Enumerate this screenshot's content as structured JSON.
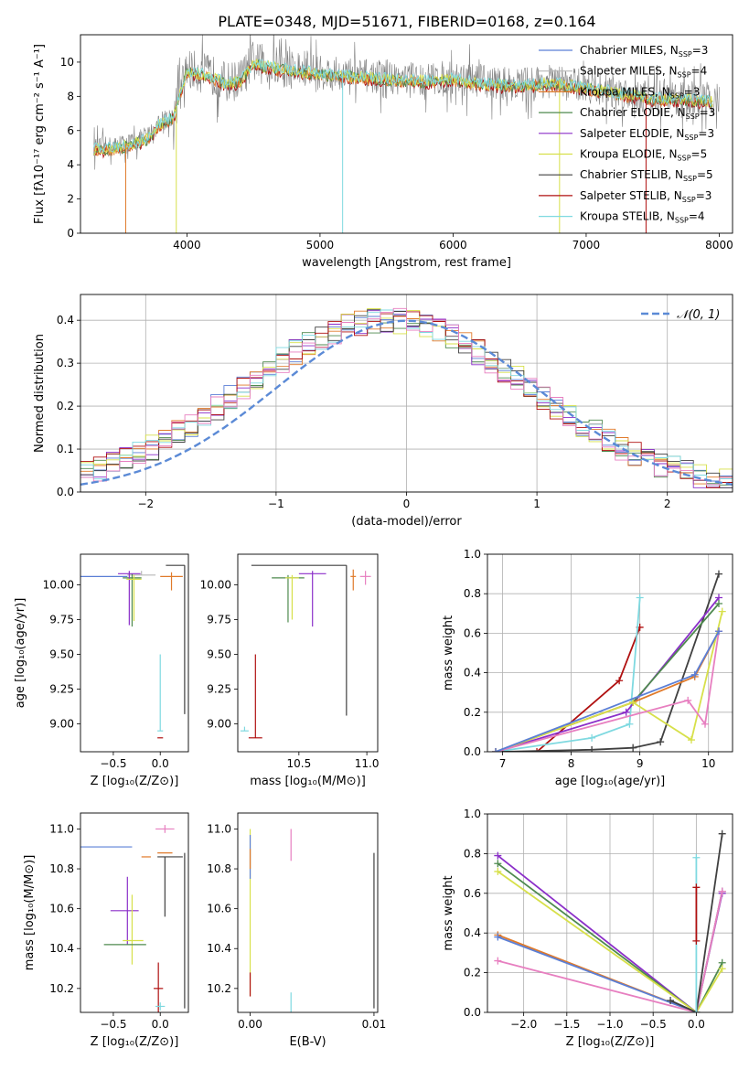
{
  "figure": {
    "title": "PLATE=0348, MJD=51671, FIBERID=0168, z=0.164"
  },
  "colors": {
    "Chabrier MILES": "#5b7fd6",
    "Salpeter MILES": "#b7b7b7",
    "Kroupa MILES": "#e07a2a",
    "Chabrier ELODIE": "#4f8a4f",
    "Salpeter ELODIE": "#8b2fc9",
    "Kroupa ELODIE": "#d7e04a",
    "Chabrier STELIB": "#404040",
    "Salpeter STELIB": "#b01010",
    "Kroupa STELIB": "#7fd9e0",
    "Pink": "#e77fc0",
    "Data": "#808080",
    "Normal": "#5b8ad6"
  },
  "chart_data": [
    {
      "id": "spectrum",
      "type": "line",
      "xlabel": "wavelength [Angstrom, rest frame]",
      "ylabel": "Flux [fλ10⁻¹⁷ erg cm⁻² s⁻¹ A⁻¹]",
      "xlim": [
        3200,
        8100
      ],
      "ylim": [
        0,
        11.6
      ],
      "xticks": [
        4000,
        5000,
        6000,
        7000,
        8000
      ],
      "yticks": [
        0,
        2,
        4,
        6,
        8,
        10
      ],
      "grid": false,
      "legend_position": "right",
      "legend": [
        {
          "label": "Chabrier MILES, N",
          "sub": "SSP",
          "tail": "=3",
          "color": "#5b7fd6"
        },
        {
          "label": "Salpeter MILES, N",
          "sub": "SSP",
          "tail": "=4",
          "color": "#b7b7b7"
        },
        {
          "label": "Kroupa MILES, N",
          "sub": "SSP",
          "tail": "=3",
          "color": "#e07a2a"
        },
        {
          "label": "Chabrier ELODIE, N",
          "sub": "SSP",
          "tail": "=3",
          "color": "#4f8a4f"
        },
        {
          "label": "Salpeter ELODIE, N",
          "sub": "SSP",
          "tail": "=3",
          "color": "#8b2fc9"
        },
        {
          "label": "Kroupa ELODIE, N",
          "sub": "SSP",
          "tail": "=5",
          "color": "#d7e04a"
        },
        {
          "label": "Chabrier STELIB, N",
          "sub": "SSP",
          "tail": "=5",
          "color": "#404040"
        },
        {
          "label": "Salpeter STELIB, N",
          "sub": "SSP",
          "tail": "=3",
          "color": "#b01010"
        },
        {
          "label": "Kroupa STELIB, N",
          "sub": "SSP",
          "tail": "=4",
          "color": "#7fd9e0"
        }
      ],
      "data_envelope": {
        "x": [
          3300,
          3500,
          3700,
          3800,
          3900,
          4000,
          4100,
          4200,
          4300,
          4400,
          4500,
          4700,
          5000,
          5200,
          5500,
          5800,
          6000,
          6300,
          6500,
          6700,
          7000,
          7300,
          7500,
          7800,
          8000
        ],
        "y": [
          5.0,
          5.1,
          5.6,
          6.5,
          6.9,
          9.6,
          9.4,
          9.2,
          8.8,
          9.0,
          10.0,
          9.7,
          9.4,
          9.3,
          9.1,
          9.0,
          9.1,
          8.8,
          8.7,
          8.9,
          8.6,
          8.2,
          8.0,
          7.9,
          7.8
        ]
      }
    },
    {
      "id": "residuals",
      "type": "line",
      "xlabel": "(data-model)/error",
      "ylabel": "Normed distribution",
      "xlim": [
        -2.5,
        2.5
      ],
      "ylim": [
        0,
        0.46
      ],
      "xticks": [
        -2,
        -1,
        0,
        1,
        2
      ],
      "xticklabels": [
        "−2",
        "−1",
        "0",
        "1",
        "2"
      ],
      "yticks": [
        0,
        0.1,
        0.2,
        0.3,
        0.4
      ],
      "yticklabels": [
        "0.0",
        "0.1",
        "0.2",
        "0.3",
        "0.4"
      ],
      "grid": true,
      "legend": "𝒩(0, 1)",
      "legend_position": "top-right",
      "normal_mean": 0,
      "normal_sigma": 1
    },
    {
      "id": "age_vs_Z",
      "type": "scatter",
      "xlabel": "Z [log₁₀(Z/Z⊙)]",
      "ylabel": "age  [log₁₀(age/yr)]",
      "xlim": [
        -0.85,
        0.3
      ],
      "ylim": [
        8.8,
        10.22
      ],
      "xticks": [
        -0.5,
        0.0
      ],
      "xticklabels": [
        "−0.5",
        "0.0"
      ],
      "yticks": [
        9.0,
        9.25,
        9.5,
        9.75,
        10.0
      ],
      "yticklabels": [
        "9.00",
        "9.25",
        "9.50",
        "9.75",
        "10.00"
      ],
      "points": [
        {
          "x": -0.45,
          "y": 10.06,
          "xerr": [
            0.4,
            0.1
          ],
          "yerr": [
            0.0,
            0.0
          ],
          "color": "#5b7fd6"
        },
        {
          "x": -0.2,
          "y": 10.07,
          "xerr": [
            0.15,
            0.15
          ],
          "yerr": [
            0.0,
            0.03
          ],
          "color": "#b7b7b7"
        },
        {
          "x": 0.12,
          "y": 10.06,
          "xerr": [
            0.12,
            0.12
          ],
          "yerr": [
            0.1,
            0.03
          ],
          "color": "#e07a2a"
        },
        {
          "x": -0.3,
          "y": 10.05,
          "xerr": [
            0.1,
            0.1
          ],
          "yerr": [
            0.35,
            0.03
          ],
          "color": "#4f8a4f"
        },
        {
          "x": -0.33,
          "y": 10.08,
          "xerr": [
            0.12,
            0.12
          ],
          "yerr": [
            0.37,
            0.02
          ],
          "color": "#8b2fc9"
        },
        {
          "x": -0.28,
          "y": 10.04,
          "xerr": [
            0.08,
            0.08
          ],
          "yerr": [
            0.3,
            0.03
          ],
          "color": "#d7e04a"
        },
        {
          "x": 0.26,
          "y": 10.14,
          "xerr": [
            0.2,
            0.0
          ],
          "yerr": [
            1.07,
            0.0
          ],
          "color": "#404040"
        },
        {
          "x": 0.0,
          "y": 8.9,
          "xerr": [
            0.03,
            0.03
          ],
          "yerr": [
            0.0,
            0.0
          ],
          "color": "#b01010"
        },
        {
          "x": 0.0,
          "y": 8.95,
          "xerr": [
            0.03,
            0.03
          ],
          "yerr": [
            0.0,
            0.55
          ],
          "color": "#7fd9e0"
        }
      ]
    },
    {
      "id": "age_vs_mass",
      "type": "scatter",
      "xlabel": "mass [log₁₀(M/M⊙)]",
      "xlim": [
        10.05,
        11.08
      ],
      "ylim": [
        8.8,
        10.22
      ],
      "xticks": [
        10.5,
        11.0
      ],
      "xticklabels": [
        "10.5",
        "11.0"
      ],
      "yticks": [
        9.0,
        9.25,
        9.5,
        9.75,
        10.0
      ],
      "yticklabels": [
        "9.00",
        "9.25",
        "9.50",
        "9.75",
        "10.00"
      ],
      "points": [
        {
          "x": 10.85,
          "y": 10.14,
          "xerr": [
            0.7,
            0.0
          ],
          "yerr": [
            1.08,
            0.0
          ],
          "color": "#404040"
        },
        {
          "x": 10.6,
          "y": 10.08,
          "xerr": [
            0.1,
            0.1
          ],
          "yerr": [
            0.38,
            0.02
          ],
          "color": "#8b2fc9"
        },
        {
          "x": 10.42,
          "y": 10.05,
          "xerr": [
            0.12,
            0.12
          ],
          "yerr": [
            0.32,
            0.02
          ],
          "color": "#4f8a4f"
        },
        {
          "x": 10.45,
          "y": 10.05,
          "xerr": [
            0.05,
            0.05
          ],
          "yerr": [
            0.3,
            0.02
          ],
          "color": "#d7e04a"
        },
        {
          "x": 10.9,
          "y": 10.06,
          "xerr": [
            0.02,
            0.02
          ],
          "yerr": [
            0.1,
            0.05
          ],
          "color": "#e07a2a"
        },
        {
          "x": 10.99,
          "y": 10.06,
          "xerr": [
            0.04,
            0.04
          ],
          "yerr": [
            0.06,
            0.04
          ],
          "color": "#e77fc0"
        },
        {
          "x": 10.18,
          "y": 8.9,
          "xerr": [
            0.05,
            0.05
          ],
          "yerr": [
            0.0,
            0.6
          ],
          "color": "#b01010"
        },
        {
          "x": 10.1,
          "y": 8.95,
          "xerr": [
            0.03,
            0.03
          ],
          "yerr": [
            0.0,
            0.03
          ],
          "color": "#7fd9e0"
        }
      ]
    },
    {
      "id": "weight_vs_age",
      "type": "line",
      "xlabel": "age  [log₁₀(age/yr)]",
      "ylabel": "mass weight",
      "xlim": [
        6.78,
        10.35
      ],
      "ylim": [
        0,
        1.0
      ],
      "xticks": [
        7,
        8,
        9,
        10
      ],
      "yticks": [
        0,
        0.2,
        0.4,
        0.6,
        0.8,
        1.0
      ],
      "yticklabels": [
        "0.0",
        "0.2",
        "0.4",
        "0.6",
        "0.8",
        "1.0"
      ],
      "grid": true,
      "series": [
        {
          "color": "#b01010",
          "x": [
            7.5,
            8.7,
            9.0
          ],
          "y": [
            0.0,
            0.36,
            0.63
          ]
        },
        {
          "color": "#7fd9e0",
          "x": [
            6.9,
            8.3,
            8.85,
            9.0
          ],
          "y": [
            0.0,
            0.07,
            0.14,
            0.78
          ]
        },
        {
          "color": "#404040",
          "x": [
            7.0,
            8.3,
            8.9,
            9.3,
            10.15
          ],
          "y": [
            0.0,
            0.01,
            0.02,
            0.05,
            0.9
          ]
        },
        {
          "color": "#8b2fc9",
          "x": [
            6.9,
            8.8,
            10.15
          ],
          "y": [
            0.0,
            0.2,
            0.78
          ]
        },
        {
          "color": "#4f8a4f",
          "x": [
            6.9,
            8.9,
            10.15
          ],
          "y": [
            0.0,
            0.25,
            0.75
          ]
        },
        {
          "color": "#e07a2a",
          "x": [
            6.9,
            8.9,
            9.8,
            10.15
          ],
          "y": [
            0.0,
            0.25,
            0.38,
            0.61
          ]
        },
        {
          "color": "#d7e04a",
          "x": [
            6.9,
            8.9,
            9.75,
            10.2
          ],
          "y": [
            0.0,
            0.25,
            0.06,
            0.71
          ]
        },
        {
          "color": "#e77fc0",
          "x": [
            6.9,
            9.7,
            9.95,
            10.15
          ],
          "y": [
            0.0,
            0.26,
            0.14,
            0.61
          ]
        },
        {
          "color": "#5b7fd6",
          "x": [
            6.9,
            9.8,
            10.15
          ],
          "y": [
            0.0,
            0.39,
            0.61
          ]
        }
      ]
    },
    {
      "id": "mass_vs_Z",
      "type": "scatter",
      "xlabel": "Z [log₁₀(Z/Z⊙)]",
      "ylabel": "mass [log₁₀(M/M⊙)]",
      "xlim": [
        -0.85,
        0.3
      ],
      "ylim": [
        10.08,
        11.08
      ],
      "xticks": [
        -0.5,
        0.0
      ],
      "xticklabels": [
        "−0.5",
        "0.0"
      ],
      "yticks": [
        10.2,
        10.4,
        10.6,
        10.8,
        11.0
      ],
      "yticklabels": [
        "10.2",
        "10.4",
        "10.6",
        "10.8",
        "11.0"
      ],
      "points": [
        {
          "x": -0.45,
          "y": 10.91,
          "xerr": [
            0.4,
            0.15
          ],
          "yerr": [
            0.0,
            0.0
          ],
          "color": "#5b7fd6"
        },
        {
          "x": 0.05,
          "y": 11.0,
          "xerr": [
            0.1,
            0.1
          ],
          "yerr": [
            0.02,
            0.02
          ],
          "color": "#e77fc0"
        },
        {
          "x": 0.05,
          "y": 10.88,
          "xerr": [
            0.08,
            0.08
          ],
          "yerr": [
            0.0,
            0.0
          ],
          "color": "#e07a2a"
        },
        {
          "x": 0.05,
          "y": 10.86,
          "xerr": [
            0.08,
            0.19
          ],
          "yerr": [
            0.3,
            0.0
          ],
          "color": "#404040"
        },
        {
          "x": -0.2,
          "y": 10.86,
          "xerr": [
            0.0,
            0.1
          ],
          "yerr": [
            0.0,
            0.0
          ],
          "color": "#e07a2a"
        },
        {
          "x": -0.35,
          "y": 10.59,
          "xerr": [
            0.18,
            0.12
          ],
          "yerr": [
            0.17,
            0.17
          ],
          "color": "#8b2fc9"
        },
        {
          "x": -0.3,
          "y": 10.44,
          "xerr": [
            0.1,
            0.12
          ],
          "yerr": [
            0.12,
            0.23
          ],
          "color": "#d7e04a"
        },
        {
          "x": -0.35,
          "y": 10.42,
          "xerr": [
            0.25,
            0.2
          ],
          "yerr": [
            0.0,
            0.0
          ],
          "color": "#4f8a4f"
        },
        {
          "x": -0.02,
          "y": 10.2,
          "xerr": [
            0.05,
            0.05
          ],
          "yerr": [
            0.13,
            0.13
          ],
          "color": "#b01010"
        },
        {
          "x": 0.0,
          "y": 10.11,
          "xerr": [
            0.05,
            0.05
          ],
          "yerr": [
            0.02,
            0.02
          ],
          "color": "#7fd9e0"
        },
        {
          "x": 0.26,
          "y": 10.86,
          "xerr": [
            0.0,
            0.0
          ],
          "yerr": [
            0.76,
            0.02
          ],
          "color": "#404040"
        }
      ]
    },
    {
      "id": "mass_vs_ebv",
      "type": "scatter",
      "xlabel": "E(B-V)",
      "xlim": [
        -0.001,
        0.0103
      ],
      "ylim": [
        10.08,
        11.08
      ],
      "xticks": [
        0.0,
        0.01
      ],
      "xticklabels": [
        "0.00",
        "0.01"
      ],
      "yticks": [
        10.2,
        10.4,
        10.6,
        10.8,
        11.0
      ],
      "yticklabels": [
        "10.2",
        "10.4",
        "10.6",
        "10.8",
        "11.0"
      ],
      "points": [
        {
          "x": 0.0,
          "y": 10.7,
          "yerr": [
            0.54,
            0.3
          ],
          "color": "#d7e04a"
        },
        {
          "x": 0.0,
          "y": 10.85,
          "yerr": [
            0.1,
            0.12
          ],
          "color": "#5b7fd6"
        },
        {
          "x": 0.0,
          "y": 10.8,
          "yerr": [
            0.0,
            0.1
          ],
          "color": "#e07a2a"
        },
        {
          "x": 0.0,
          "y": 10.22,
          "yerr": [
            0.06,
            0.06
          ],
          "color": "#b01010"
        },
        {
          "x": 0.0033,
          "y": 10.92,
          "yerr": [
            0.08,
            0.08
          ],
          "color": "#e77fc0"
        },
        {
          "x": 0.0033,
          "y": 10.13,
          "yerr": [
            0.05,
            0.05
          ],
          "color": "#7fd9e0"
        },
        {
          "x": 0.01,
          "y": 10.5,
          "yerr": [
            0.4,
            0.38
          ],
          "color": "#404040"
        }
      ]
    },
    {
      "id": "weight_vs_Z",
      "type": "line",
      "xlabel": "Z [log₁₀(Z/Z⊙)]",
      "ylabel": "mass weight",
      "xlim": [
        -2.42,
        0.42
      ],
      "ylim": [
        0,
        1.0
      ],
      "xticks": [
        -2.0,
        -1.5,
        -1.0,
        -0.5,
        0.0
      ],
      "xticklabels": [
        "−2.0",
        "−1.5",
        "−1.0",
        "−0.5",
        "0.0"
      ],
      "yticks": [
        0,
        0.2,
        0.4,
        0.6,
        0.8,
        1.0
      ],
      "yticklabels": [
        "0.0",
        "0.2",
        "0.4",
        "0.6",
        "0.8",
        "1.0"
      ],
      "grid": true,
      "series": [
        {
          "color": "#8b2fc9",
          "x": [
            -2.3,
            0.0,
            0.3
          ],
          "y": [
            0.79,
            0.0,
            0.6
          ]
        },
        {
          "color": "#4f8a4f",
          "x": [
            -2.3,
            0.0,
            0.3
          ],
          "y": [
            0.75,
            0.0,
            0.25
          ]
        },
        {
          "color": "#d7e04a",
          "x": [
            -2.3,
            0.0,
            0.3
          ],
          "y": [
            0.71,
            0.0,
            0.22
          ]
        },
        {
          "color": "#e07a2a",
          "x": [
            -2.3,
            0.0,
            0.3
          ],
          "y": [
            0.39,
            0.0,
            0.61
          ]
        },
        {
          "color": "#5b7fd6",
          "x": [
            -2.3,
            0.0,
            0.3
          ],
          "y": [
            0.38,
            0.0,
            0.61
          ]
        },
        {
          "color": "#e77fc0",
          "x": [
            -2.3,
            0.0,
            0.3
          ],
          "y": [
            0.26,
            0.0,
            0.61
          ]
        },
        {
          "color": "#404040",
          "x": [
            -0.3,
            0.0,
            0.3
          ],
          "y": [
            0.06,
            0.0,
            0.9
          ]
        },
        {
          "color": "#7fd9e0",
          "x": [
            0.0,
            0.0
          ],
          "y": [
            0.0,
            0.78
          ]
        },
        {
          "color": "#b01010",
          "x": [
            0.0,
            0.0
          ],
          "y": [
            0.36,
            0.63
          ]
        }
      ]
    }
  ]
}
